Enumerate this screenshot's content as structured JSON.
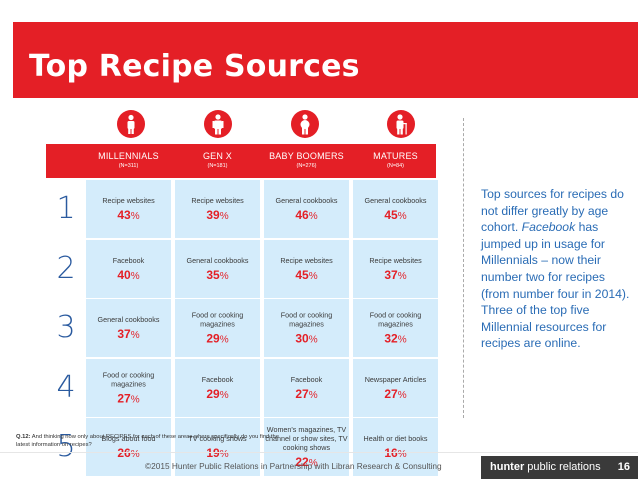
{
  "title": "Top Recipe Sources",
  "columns": [
    {
      "name": "MILLENNIALS",
      "n": "(N=311)",
      "icon": "young-person-icon"
    },
    {
      "name": "GEN X",
      "n": "(N=181)",
      "icon": "adult-person-icon"
    },
    {
      "name": "BABY BOOMERS",
      "n": "(N=276)",
      "icon": "middle-aged-person-icon"
    },
    {
      "name": "MATURES",
      "n": "(N=84)",
      "icon": "elderly-person-icon"
    }
  ],
  "rows": [
    {
      "rank": "1",
      "cells": [
        {
          "source": "Recipe websites",
          "pct": "43",
          "unit": "%"
        },
        {
          "source": "Recipe websites",
          "pct": "39",
          "unit": "%"
        },
        {
          "source": "General cookbooks",
          "pct": "46",
          "unit": "%"
        },
        {
          "source": "General cookbooks",
          "pct": "45",
          "unit": "%"
        }
      ]
    },
    {
      "rank": "2",
      "cells": [
        {
          "source": "Facebook",
          "pct": "40",
          "unit": "%"
        },
        {
          "source": "General cookbooks",
          "pct": "35",
          "unit": "%"
        },
        {
          "source": "Recipe websites",
          "pct": "45",
          "unit": "%"
        },
        {
          "source": "Recipe websites",
          "pct": "37",
          "unit": "%"
        }
      ]
    },
    {
      "rank": "3",
      "cells": [
        {
          "source": "General cookbooks",
          "pct": "37",
          "unit": "%"
        },
        {
          "source": "Food or cooking magazines",
          "pct": "29",
          "unit": "%"
        },
        {
          "source": "Food or cooking magazines",
          "pct": "30",
          "unit": "%"
        },
        {
          "source": "Food or cooking magazines",
          "pct": "32",
          "unit": "%"
        }
      ]
    },
    {
      "rank": "4",
      "cells": [
        {
          "source": "Food or cooking magazines",
          "pct": "27",
          "unit": "%"
        },
        {
          "source": "Facebook",
          "pct": "29",
          "unit": "%"
        },
        {
          "source": "Facebook",
          "pct": "27",
          "unit": "%"
        },
        {
          "source": "Newspaper Articles",
          "pct": "27",
          "unit": "%"
        }
      ]
    },
    {
      "rank": "5",
      "cells": [
        {
          "source": "Blogs about food",
          "pct": "26",
          "unit": "%"
        },
        {
          "source": "TV cooking shows",
          "pct": "19",
          "unit": "%"
        },
        {
          "source": "Women's magazines, TV channel or show sites, TV cooking shows",
          "pct": "22",
          "unit": "%"
        },
        {
          "source": "Health or diet books",
          "pct": "16",
          "unit": "%"
        }
      ]
    }
  ],
  "sidebar": {
    "text_before": "Top sources for recipes do not differ greatly by age cohort. ",
    "emph": "Facebook",
    "text_after": " has jumped up in usage for Millennials – now their number two for recipes (from number four in 2014). Three of the top five Millennial resources for recipes are online."
  },
  "question": {
    "label": "Q.12:",
    "text": " And thinking now only about RECIPES for each of these areas where specifically do you find the latest information on recipes?"
  },
  "footer": {
    "credit": "©2015 Hunter Public Relations in Partnership with Libran Research & Consulting",
    "brand_bold": "hunter",
    "brand_rest": " public relations",
    "page": "16"
  },
  "colors": {
    "accent": "#e41f26",
    "cell": "#d4ecfb",
    "number": "#2a5a9f",
    "sidebar": "#2a6cb5"
  }
}
